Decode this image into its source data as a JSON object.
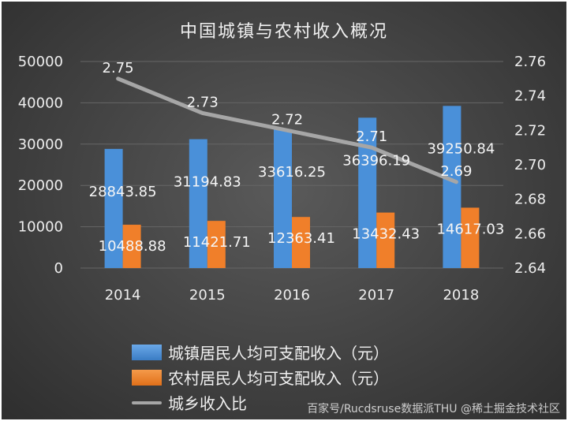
{
  "chart_data": {
    "type": "bar+line",
    "title": "中国城镇与农村收入概况",
    "categories": [
      "2014",
      "2015",
      "2016",
      "2017",
      "2018"
    ],
    "series": [
      {
        "name": "城镇居民人均可支配收入（元）",
        "type": "bar",
        "axis": "left",
        "color": "#4a90d9",
        "values": [
          28843.85,
          31194.83,
          33616.25,
          36396.19,
          39250.84
        ],
        "labels": [
          "28843.85",
          "31194.83",
          "33616.25",
          "36396.19",
          "39250.84"
        ]
      },
      {
        "name": "农村居民人均可支配收入（元）",
        "type": "bar",
        "axis": "left",
        "color": "#f07f2a",
        "values": [
          10488.88,
          11421.71,
          12363.41,
          13432.43,
          14617.03
        ],
        "labels": [
          "10488.88",
          "11421.71",
          "12363.41",
          "13432.43",
          "14617.03"
        ]
      },
      {
        "name": "城乡收入比",
        "type": "line",
        "axis": "right",
        "color": "#a6a6a6",
        "values": [
          2.75,
          2.73,
          2.72,
          2.71,
          2.69
        ],
        "labels": [
          "2.75",
          "2.73",
          "2.72",
          "2.71",
          "2.69"
        ]
      }
    ],
    "y_left": {
      "range": [
        0,
        50000
      ],
      "ticks": [
        "0",
        "10000",
        "20000",
        "30000",
        "40000",
        "50000"
      ]
    },
    "y_right": {
      "range": [
        2.64,
        2.76
      ],
      "ticks": [
        "2.64",
        "2.66",
        "2.68",
        "2.70",
        "2.72",
        "2.74",
        "2.76"
      ]
    },
    "grid": true,
    "legend_position": "bottom-left"
  },
  "watermark": "百家号/Rucdsruse数据派THU @稀土掘金技术社区"
}
